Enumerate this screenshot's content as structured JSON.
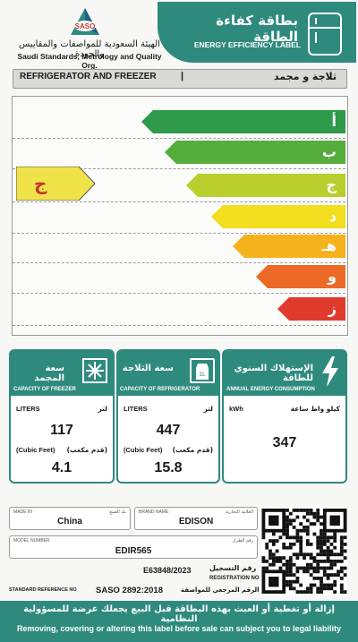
{
  "header": {
    "logo_text": "SASO",
    "org_name_ar": "الهيئة السعودية للمواصفات والمقاييس والجودة",
    "org_name_en": "Saudi Standards, Metrology and Quality Org.",
    "label_title_ar": "بطاقة كفاءة الطاقة",
    "label_title_en": "ENERGY EFFICIENCY LABEL",
    "icon": "refrigerator-icon"
  },
  "product_type": {
    "en": "REFRIGERATOR AND FREEZER",
    "separator": "|",
    "ar": "ثلاجة و مجمد"
  },
  "scale": {
    "classes": [
      {
        "letter": "أ",
        "color": "#2e9a4a"
      },
      {
        "letter": "ب",
        "color": "#55ad3c"
      },
      {
        "letter": "ج",
        "color": "#b9cf2d"
      },
      {
        "letter": "د",
        "color": "#f2dd1e"
      },
      {
        "letter": "هـ",
        "color": "#f5b21d"
      },
      {
        "letter": "و",
        "color": "#ec6a26"
      },
      {
        "letter": "ز",
        "color": "#e03a2c"
      }
    ],
    "rating": {
      "letter": "ج",
      "color": "#f0e34a"
    }
  },
  "freezer": {
    "title_ar": "سعة المجمد",
    "title_en": "CAPACITY OF FREEZER",
    "liters_label": "LITERS",
    "liters_label_ar": "لتر",
    "liters_value": "117",
    "cubic_label": "(Cubic Feet)",
    "cubic_label_ar": "(قدم مكعب)",
    "cubic_value": "4.1",
    "icon": "snowflake-icon"
  },
  "refrigerator": {
    "title_ar": "سعة الثلاجة",
    "title_en": "CAPACITY OF REFRIGERATOR",
    "liters_label": "LITERS",
    "liters_label_ar": "لتر",
    "liters_value": "447",
    "cubic_label": "(Cubic Feet)",
    "cubic_label_ar": "(قدم مكعب)",
    "cubic_value": "15.8",
    "icon": "milk-carton-icon"
  },
  "energy": {
    "title_ar": "الإستهلاك السنوي للطاقة",
    "title_en": "ANNUAL ENERGY CONSUMPTION",
    "unit_label": "kWh",
    "unit_label_ar": "كيلو واط ساعة",
    "value": "347",
    "icon": "lightning-icon"
  },
  "details": {
    "made_in_label": "MADE IN",
    "made_in_label_ar": "بلد الصنع",
    "made_in_value": "China",
    "brand_label": "BRAND NAME",
    "brand_label_ar": "العلامة التجارية",
    "brand_value": "EDISON",
    "model_label": "MODEL NUMBER",
    "model_label_ar": "رقم الطراز",
    "model_value": "EDIR565",
    "registration_value": "E63848/2023",
    "registration_label_ar": "رقم التسجيل",
    "registration_label_en": "REGISTRATION NO",
    "standard_label_en": "STANDARD REFERENCE NO",
    "standard_value": "SASO 2892:2018",
    "standard_label_ar": "الرقم المرجعي للمواصفة"
  },
  "footer": {
    "warning_ar": "إزالة أو تغطية أو العبث بهذه البطاقة قبل البيع يجعلك عرضة للمسؤولية النظامية",
    "warning_en": "Removing, covering or altering this label before sale can subject you to legal liability"
  }
}
